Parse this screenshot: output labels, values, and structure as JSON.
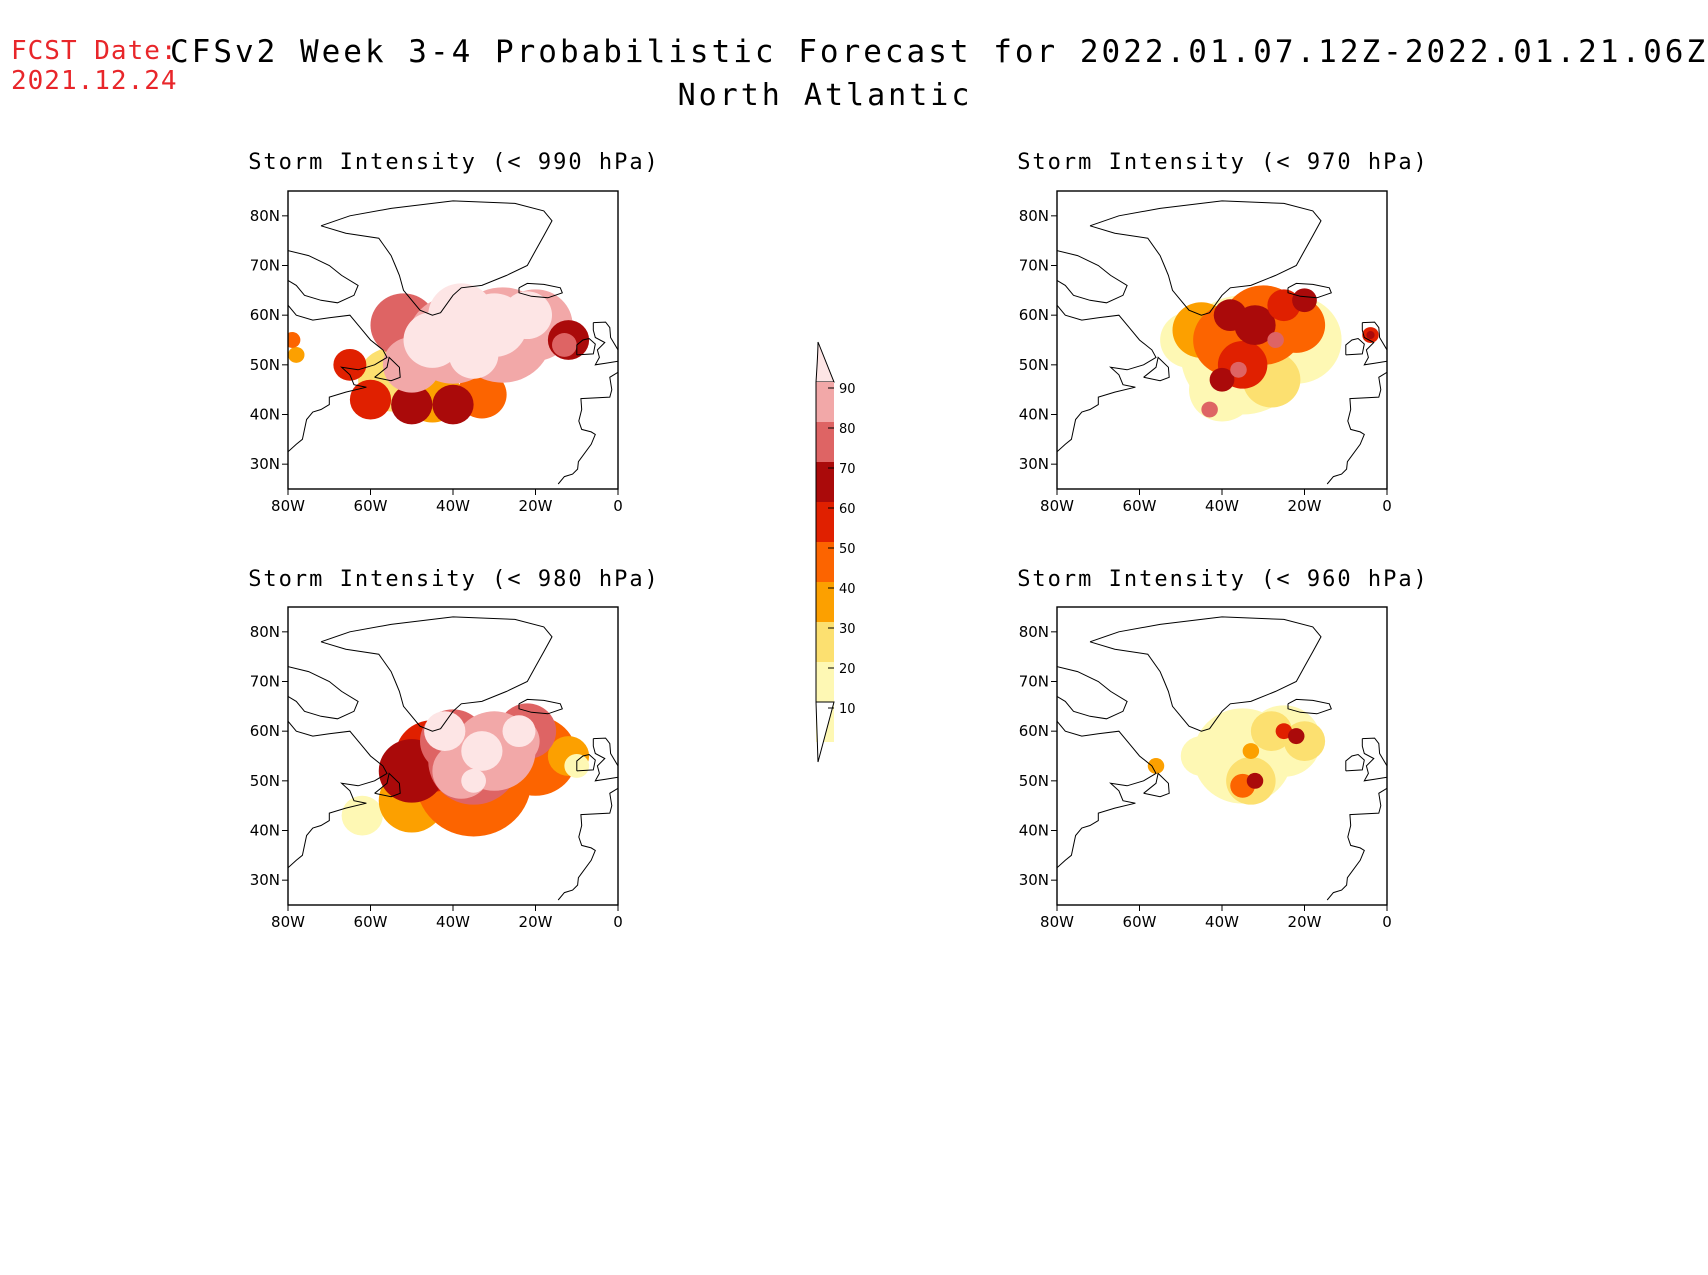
{
  "header": {
    "fcst_label": "FCST Date:",
    "fcst_date": "2021.12.24",
    "title": "CFSv2 Week 3-4 Probabilistic Forecast for 2022.01.07.12Z-2022.01.21.06Z",
    "subtitle": "North Atlantic"
  },
  "panels": [
    {
      "id": "p990",
      "title": "Storm Intensity (< 990 hPa)"
    },
    {
      "id": "p970",
      "title": "Storm Intensity (< 970 hPa)"
    },
    {
      "id": "p980",
      "title": "Storm Intensity (< 980 hPa)"
    },
    {
      "id": "p960",
      "title": "Storm Intensity (< 960 hPa)"
    }
  ],
  "axes": {
    "lat_labels": [
      "80N",
      "70N",
      "60N",
      "50N",
      "40N",
      "30N"
    ],
    "lon_labels": [
      "80W",
      "60W",
      "40W",
      "20W",
      "0"
    ],
    "lat_values": [
      80,
      70,
      60,
      50,
      40,
      30
    ],
    "lon_values": [
      -80,
      -60,
      -40,
      -20,
      0
    ]
  },
  "colorbar": {
    "levels": [
      "90",
      "80",
      "70",
      "60",
      "50",
      "40",
      "30",
      "20",
      "10"
    ],
    "colors": [
      "#fde5e5",
      "#f2a8a8",
      "#de6464",
      "#aa0a0a",
      "#e02000",
      "#fc6400",
      "#fca000",
      "#fce070",
      "#fef8b4"
    ]
  }
}
